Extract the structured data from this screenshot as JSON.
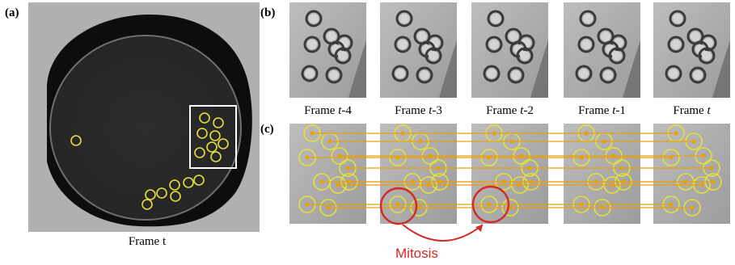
{
  "figure": {
    "panel_a": {
      "label": "(a)",
      "caption": "Frame t"
    },
    "panel_b": {
      "label": "(b)",
      "frames": [
        {
          "prefix": "Frame ",
          "var": "t",
          "suffix": "-4"
        },
        {
          "prefix": "Frame ",
          "var": "t",
          "suffix": "-3"
        },
        {
          "prefix": "Frame ",
          "var": "t",
          "suffix": "-2"
        },
        {
          "prefix": "Frame ",
          "var": "t",
          "suffix": "-1"
        },
        {
          "prefix": "Frame ",
          "var": "t",
          "suffix": ""
        }
      ]
    },
    "panel_c": {
      "label": "(c)",
      "annotation": "Mitosis"
    },
    "colors": {
      "detection": "#e8e03a",
      "track": "#e8a010",
      "highlight": "#d42a23"
    }
  }
}
